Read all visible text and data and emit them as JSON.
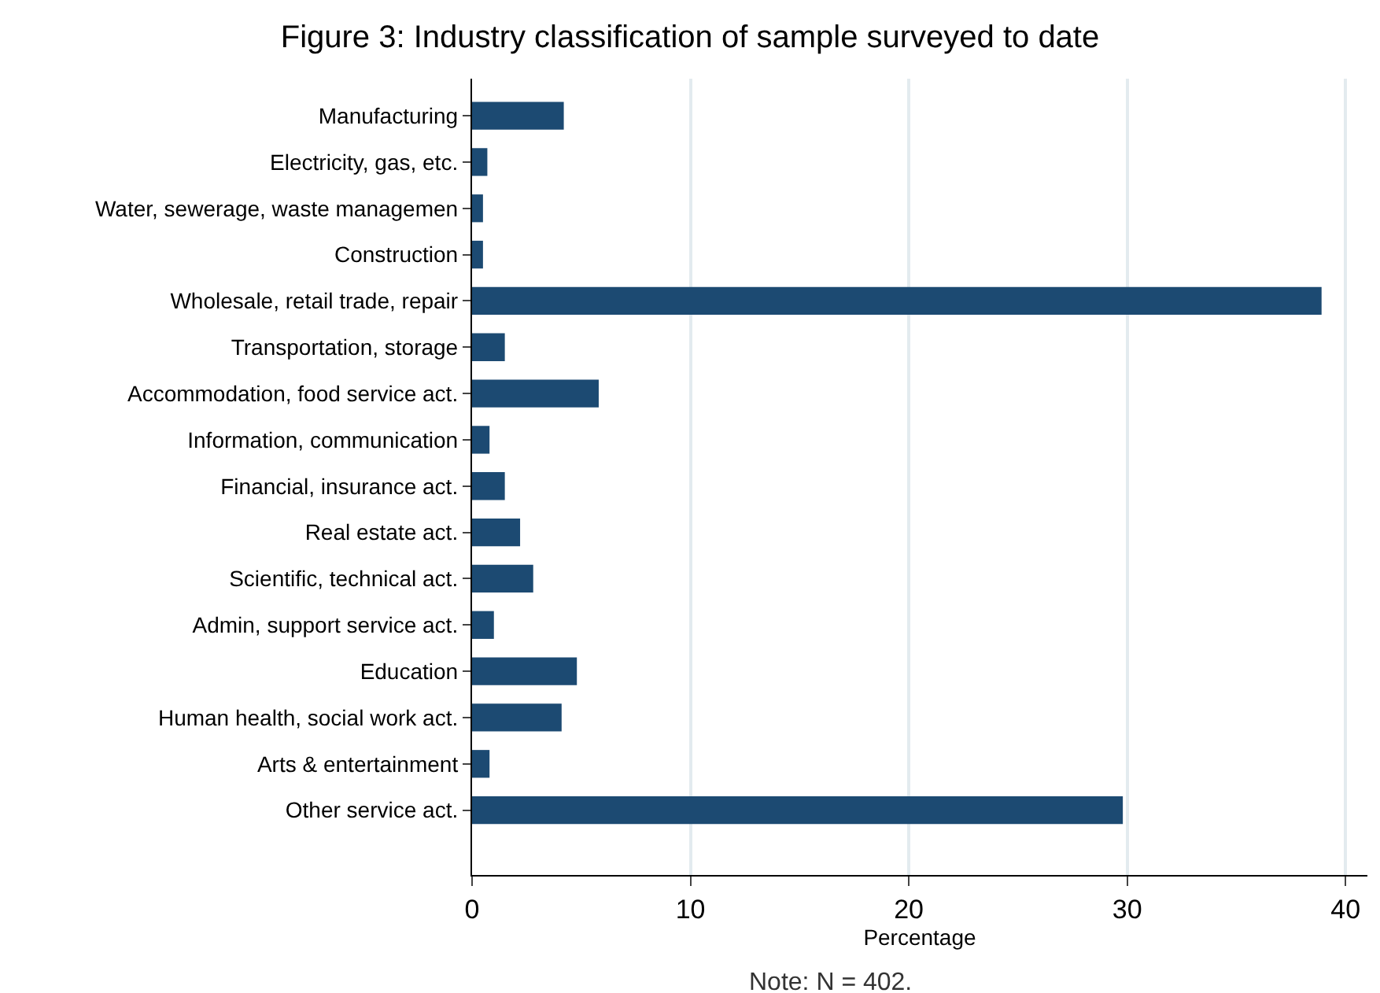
{
  "chart_data": {
    "type": "bar",
    "orientation": "horizontal",
    "title": "Figure 3: Industry classification of sample surveyed to date",
    "xlabel": "Percentage",
    "categories": [
      "Manufacturing",
      "Electricity, gas, etc.",
      "Water, sewerage, waste managemen",
      "Construction",
      "Wholesale, retail trade, repair",
      "Transportation, storage",
      "Accommodation, food service act.",
      "Information, communication",
      "Financial, insurance act.",
      "Real estate act.",
      "Scientific, technical act.",
      "Admin, support service act.",
      "Education",
      "Human health, social work act.",
      "Arts & entertainment",
      "Other service act."
    ],
    "values": [
      4.2,
      0.7,
      0.5,
      0.5,
      38.9,
      1.5,
      5.8,
      0.8,
      1.5,
      2.2,
      2.8,
      1.0,
      4.8,
      4.1,
      0.8,
      29.8
    ],
    "color": "#1c4a72",
    "xlim": [
      0,
      41
    ],
    "xticks": [
      0,
      10,
      20,
      30,
      40
    ],
    "grid": "x",
    "annotations": [
      "Note: N = 402."
    ]
  }
}
